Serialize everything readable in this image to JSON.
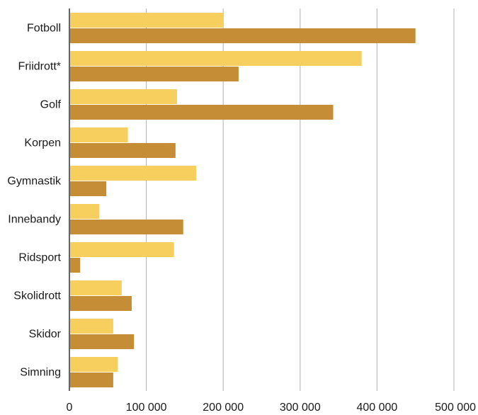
{
  "chart_data": {
    "type": "bar",
    "orientation": "horizontal",
    "categories": [
      "Fotboll",
      "Friidrott*",
      "Golf",
      "Korpen",
      "Gymnastik",
      "Innebandy",
      "Ridsport",
      "Skolidrott",
      "Skidor",
      "Simning"
    ],
    "series": [
      {
        "color": "#F7CF5E",
        "values": [
          200000,
          380000,
          140000,
          76000,
          165000,
          39000,
          136000,
          68000,
          57000,
          63000
        ]
      },
      {
        "color": "#C58E36",
        "values": [
          450000,
          220000,
          343000,
          138000,
          48000,
          148000,
          14000,
          81000,
          84000,
          57000
        ]
      }
    ],
    "xlim": [
      0,
      500000
    ],
    "xticks": [
      0,
      100000,
      200000,
      300000,
      400000,
      500000
    ],
    "xtick_labels": [
      "0",
      "100 000",
      "200 000",
      "300 000",
      "400 000",
      "500 000"
    ],
    "grid": true,
    "legend": false
  }
}
